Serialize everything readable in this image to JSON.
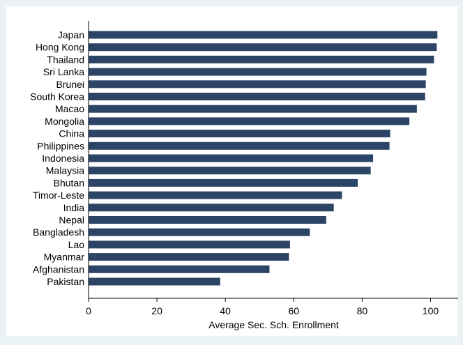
{
  "chart_data": {
    "type": "bar",
    "orientation": "horizontal",
    "title": "",
    "xlabel": "Average Sec. Sch. Enrollment",
    "ylabel": "",
    "xlim": [
      0,
      105
    ],
    "x_ticks": [
      0,
      20,
      40,
      60,
      80,
      100
    ],
    "grid": false,
    "legend": "none",
    "bar_color": "#2c4566",
    "plot_background": "#ffffff",
    "page_background": "#eaf2f3",
    "categories": [
      "Japan",
      "Hong Kong",
      "Thailand",
      "Sri Lanka",
      "Brunei",
      "South Korea",
      "Macao",
      "Mongolia",
      "China",
      "Philippines",
      "Indonesia",
      "Malaysia",
      "Bhutan",
      "Timor-Leste",
      "India",
      "Nepal",
      "Bangladesh",
      "Lao",
      "Myanmar",
      "Afghanistan",
      "Pakistan"
    ],
    "values": [
      102.0,
      101.8,
      101.0,
      98.8,
      98.6,
      98.4,
      96.0,
      93.8,
      88.2,
      88.0,
      83.2,
      82.5,
      78.7,
      74.1,
      71.7,
      69.5,
      64.7,
      58.9,
      58.6,
      52.9,
      38.5
    ]
  }
}
